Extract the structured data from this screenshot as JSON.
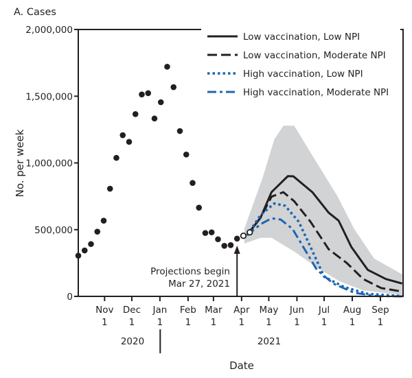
{
  "chart_data": {
    "type": "line",
    "panel_title": "A. Cases",
    "xlabel": "Date",
    "ylabel": "No. per week",
    "xlim": [
      "2020-10-03",
      "2021-09-26"
    ],
    "ylim": [
      0,
      2000000
    ],
    "y_ticks": [
      {
        "value": 0,
        "label": "0"
      },
      {
        "value": 500000,
        "label": "500,000"
      },
      {
        "value": 1000000,
        "label": "1,000,000"
      },
      {
        "value": 1500000,
        "label": "1,500,000"
      },
      {
        "value": 2000000,
        "label": "2,000,000"
      }
    ],
    "x_ticks": [
      {
        "date": "2020-11-01",
        "month": "Nov",
        "day": "1"
      },
      {
        "date": "2020-12-01",
        "month": "Dec",
        "day": "1"
      },
      {
        "date": "2021-01-01",
        "month": "Jan",
        "day": "1"
      },
      {
        "date": "2021-02-01",
        "month": "Feb",
        "day": "1"
      },
      {
        "date": "2021-03-01",
        "month": "Mar",
        "day": "1"
      },
      {
        "date": "2021-04-01",
        "month": "Apr",
        "day": "1"
      },
      {
        "date": "2021-05-01",
        "month": "May",
        "day": "1"
      },
      {
        "date": "2021-06-01",
        "month": "Jun",
        "day": "1"
      },
      {
        "date": "2021-07-01",
        "month": "Jul",
        "day": "1"
      },
      {
        "date": "2021-08-01",
        "month": "Aug",
        "day": "1"
      },
      {
        "date": "2021-09-01",
        "month": "Sep",
        "day": "1"
      }
    ],
    "year_labels": [
      {
        "label": "2020"
      },
      {
        "label": "2021"
      }
    ],
    "grid": false,
    "legend_position": "top-right",
    "annotation": {
      "line1": "Projections begin",
      "line2": "Mar 27, 2021",
      "date": "2021-03-27"
    },
    "observed": {
      "style": "filled-dots",
      "color": "#231f20",
      "points": [
        [
          "2020-10-03",
          305000
        ],
        [
          "2020-10-10",
          344000
        ],
        [
          "2020-10-17",
          392000
        ],
        [
          "2020-10-24",
          485000
        ],
        [
          "2020-10-31",
          567000
        ],
        [
          "2020-11-07",
          807000
        ],
        [
          "2020-11-14",
          1038000
        ],
        [
          "2020-11-21",
          1208000
        ],
        [
          "2020-11-28",
          1158000
        ],
        [
          "2020-12-05",
          1366000
        ],
        [
          "2020-12-12",
          1513000
        ],
        [
          "2020-12-19",
          1523000
        ],
        [
          "2020-12-26",
          1333000
        ],
        [
          "2021-01-02",
          1455000
        ],
        [
          "2021-01-09",
          1721000
        ],
        [
          "2021-01-16",
          1568000
        ],
        [
          "2021-01-23",
          1239000
        ],
        [
          "2021-01-30",
          1063000
        ],
        [
          "2021-02-06",
          850000
        ],
        [
          "2021-02-13",
          665000
        ],
        [
          "2021-02-20",
          475000
        ],
        [
          "2021-02-27",
          480000
        ],
        [
          "2021-03-06",
          428000
        ],
        [
          "2021-03-13",
          379000
        ],
        [
          "2021-03-20",
          384000
        ],
        [
          "2021-03-27",
          433000
        ]
      ]
    },
    "observed_after": {
      "style": "open-dots",
      "points": [
        [
          "2021-04-03",
          454000
        ],
        [
          "2021-04-10",
          480000
        ]
      ]
    },
    "uncertainty_band": {
      "color": "#d1d3d4",
      "upper": [
        [
          "2021-04-04",
          507000
        ],
        [
          "2021-04-24",
          884000
        ],
        [
          "2021-05-07",
          1176000
        ],
        [
          "2021-05-17",
          1279000
        ],
        [
          "2021-05-29",
          1279000
        ],
        [
          "2021-06-18",
          1056000
        ],
        [
          "2021-07-16",
          747000
        ],
        [
          "2021-08-03",
          507000
        ],
        [
          "2021-08-25",
          284000
        ],
        [
          "2021-09-25",
          165000
        ]
      ],
      "lower": [
        [
          "2021-04-04",
          396000
        ],
        [
          "2021-04-22",
          439000
        ],
        [
          "2021-05-04",
          439000
        ],
        [
          "2021-05-29",
          336000
        ],
        [
          "2021-06-23",
          216000
        ],
        [
          "2021-07-18",
          113000
        ],
        [
          "2021-08-13",
          45000
        ],
        [
          "2021-09-25",
          10000
        ]
      ]
    },
    "series": [
      {
        "name": "Low vaccination, Low NPI",
        "color": "#231f20",
        "dash": "solid",
        "points": [
          [
            "2021-04-07",
            458000
          ],
          [
            "2021-04-22",
            591000
          ],
          [
            "2021-05-04",
            781000
          ],
          [
            "2021-05-22",
            901000
          ],
          [
            "2021-05-28",
            900000
          ],
          [
            "2021-06-18",
            781000
          ],
          [
            "2021-07-06",
            627000
          ],
          [
            "2021-07-17",
            567000
          ],
          [
            "2021-07-31",
            370000
          ],
          [
            "2021-08-18",
            199000
          ],
          [
            "2021-09-07",
            130000
          ],
          [
            "2021-09-25",
            96000
          ]
        ]
      },
      {
        "name": "Low vaccination, Moderate NPI",
        "color": "#231f20",
        "dash": "dashed",
        "points": [
          [
            "2021-04-07",
            458000
          ],
          [
            "2021-04-22",
            591000
          ],
          [
            "2021-05-04",
            747000
          ],
          [
            "2021-05-17",
            781000
          ],
          [
            "2021-05-29",
            713000
          ],
          [
            "2021-06-16",
            559000
          ],
          [
            "2021-07-06",
            353000
          ],
          [
            "2021-07-26",
            250000
          ],
          [
            "2021-08-13",
            130000
          ],
          [
            "2021-09-02",
            62000
          ],
          [
            "2021-09-25",
            36000
          ]
        ]
      },
      {
        "name": "High vaccination, Low NPI",
        "color": "#1a66b5",
        "dash": "dotted",
        "points": [
          [
            "2021-04-07",
            458000
          ],
          [
            "2021-04-22",
            610000
          ],
          [
            "2021-05-07",
            696000
          ],
          [
            "2021-05-19",
            679000
          ],
          [
            "2021-06-03",
            559000
          ],
          [
            "2021-06-16",
            370000
          ],
          [
            "2021-07-01",
            147000
          ],
          [
            "2021-07-23",
            70000
          ],
          [
            "2021-08-18",
            19000
          ],
          [
            "2021-09-25",
            2000
          ]
        ]
      },
      {
        "name": "High vaccination, Moderate NPI",
        "color": "#1a66b5",
        "dash": "dash-dot",
        "points": [
          [
            "2021-04-07",
            458000
          ],
          [
            "2021-04-22",
            541000
          ],
          [
            "2021-05-04",
            585000
          ],
          [
            "2021-05-14",
            576000
          ],
          [
            "2021-05-27",
            507000
          ],
          [
            "2021-06-11",
            336000
          ],
          [
            "2021-06-23",
            199000
          ],
          [
            "2021-07-11",
            96000
          ],
          [
            "2021-08-03",
            27000
          ],
          [
            "2021-08-28",
            2000
          ],
          [
            "2021-09-25",
            0
          ]
        ]
      }
    ]
  }
}
